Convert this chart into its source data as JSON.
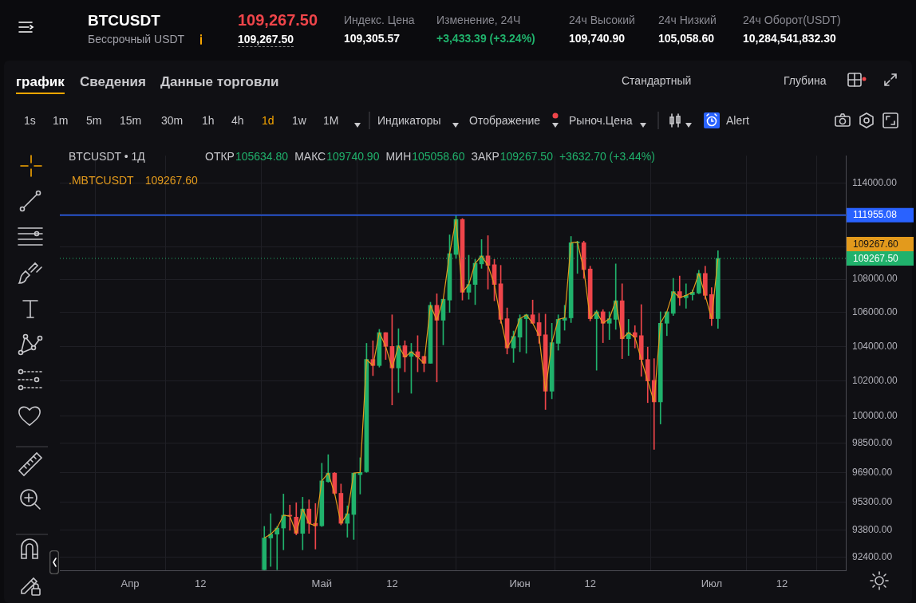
{
  "chart_data": {
    "type": "candlestick",
    "title": "BTCUSDT",
    "subtitle": "Бессрочный USDT",
    "x": [
      "--04-22",
      "--04-23",
      "--04-24",
      "--04-25",
      "--04-26",
      "--04-27",
      "--04-28",
      "--04-29",
      "--04-30",
      "--05-01",
      "--05-02",
      "--05-03",
      "--05-04",
      "--05-05",
      "--05-06",
      "--05-07",
      "--05-08",
      "--05-09",
      "--05-10",
      "--05-11",
      "--05-12",
      "--05-13",
      "--05-14",
      "--05-15",
      "--05-16",
      "--05-17",
      "--05-18",
      "--05-19",
      "--05-20",
      "--05-21",
      "--05-22",
      "--05-23",
      "--05-24",
      "--05-25",
      "--05-26",
      "--05-27",
      "--05-28",
      "--05-29",
      "--05-30",
      "--05-31",
      "--06-01",
      "--06-02",
      "--06-03",
      "--06-04",
      "--06-05",
      "--06-06",
      "--06-07",
      "--06-08",
      "--06-09",
      "--06-10",
      "--06-11",
      "--06-12",
      "--06-13",
      "--06-14",
      "--06-15",
      "--06-16",
      "--06-17",
      "--06-18",
      "--06-19",
      "--06-20",
      "--06-21",
      "--06-22",
      "--06-23",
      "--06-24",
      "--06-25",
      "--06-26",
      "--06-27",
      "--06-28",
      "--06-29",
      "--06-30",
      "--07-01",
      "--07-02"
    ],
    "ohlc": [
      [
        91750,
        94010,
        91750,
        93400
      ],
      [
        93400,
        94680,
        91920,
        93600
      ],
      [
        93600,
        94010,
        91750,
        93920
      ],
      [
        93920,
        95730,
        92780,
        94600
      ],
      [
        94600,
        95140,
        93800,
        94550
      ],
      [
        94500,
        95260,
        93560,
        93640
      ],
      [
        93640,
        95560,
        92780,
        94930
      ],
      [
        94930,
        95420,
        93640,
        94170
      ],
      [
        94170,
        95220,
        92820,
        94040
      ],
      [
        94040,
        97400,
        94000,
        96440
      ],
      [
        96400,
        97870,
        96360,
        96860
      ],
      [
        96860,
        96900,
        95700,
        95770
      ],
      [
        95770,
        96270,
        94090,
        94170
      ],
      [
        94170,
        95100,
        93440,
        94680
      ],
      [
        94640,
        96860,
        93320,
        96860
      ],
      [
        96780,
        97700,
        95730,
        96900
      ],
      [
        96940,
        104180,
        96900,
        103240
      ],
      [
        103240,
        104330,
        102310,
        102890
      ],
      [
        102890,
        105000,
        102800,
        104810
      ],
      [
        104810,
        104810,
        103240,
        104000
      ],
      [
        104000,
        105860,
        100640,
        102750
      ],
      [
        102750,
        105040,
        101340,
        104040
      ],
      [
        104040,
        104330,
        102530,
        103380
      ],
      [
        103420,
        104180,
        101300,
        103690
      ],
      [
        103690,
        104630,
        102530,
        103380
      ],
      [
        103420,
        103420,
        102530,
        103020
      ],
      [
        103020,
        106610,
        103020,
        106430
      ],
      [
        106430,
        107120,
        101950,
        105540
      ],
      [
        105540,
        106790,
        104090,
        106790
      ],
      [
        106740,
        110720,
        106000,
        109560
      ],
      [
        109510,
        111950,
        109270,
        111680
      ],
      [
        111680,
        111740,
        106740,
        107210
      ],
      [
        107210,
        109460,
        106790,
        107680
      ],
      [
        107680,
        109200,
        106470,
        108970
      ],
      [
        108930,
        110430,
        108660,
        109420
      ],
      [
        109420,
        110670,
        107400,
        108840
      ],
      [
        108880,
        109200,
        106700,
        107680
      ],
      [
        107720,
        108840,
        105360,
        105590
      ],
      [
        105630,
        106270,
        103560,
        103910
      ],
      [
        103910,
        104900,
        103070,
        104590
      ],
      [
        104540,
        105860,
        103690,
        105630
      ],
      [
        105630,
        105900,
        103600,
        105860
      ],
      [
        105860,
        106740,
        105360,
        105360
      ],
      [
        105400,
        105950,
        104180,
        104630
      ],
      [
        104680,
        105900,
        100380,
        101420
      ],
      [
        101420,
        105360,
        100990,
        104220
      ],
      [
        104180,
        105860,
        103780,
        105590
      ],
      [
        105540,
        106430,
        104950,
        105680
      ],
      [
        105680,
        110620,
        105400,
        110230
      ],
      [
        110230,
        110330,
        108350,
        110280
      ],
      [
        110230,
        110330,
        108050,
        108580
      ],
      [
        108620,
        108790,
        105500,
        105630
      ],
      [
        105630,
        106130,
        102620,
        106040
      ],
      [
        106040,
        106170,
        104220,
        105360
      ],
      [
        105360,
        106040,
        104400,
        105630
      ],
      [
        105590,
        108930,
        105000,
        106700
      ],
      [
        106700,
        107720,
        103290,
        104450
      ],
      [
        104450,
        105590,
        103470,
        104810
      ],
      [
        104810,
        105220,
        103910,
        104540
      ],
      [
        104630,
        106470,
        102270,
        103240
      ],
      [
        103240,
        103960,
        100770,
        102000
      ],
      [
        102040,
        103290,
        98160,
        100810
      ],
      [
        100810,
        106040,
        99570,
        105360
      ],
      [
        105360,
        106040,
        104630,
        106040
      ],
      [
        105950,
        108050,
        105820,
        107250
      ],
      [
        107250,
        108190,
        106420,
        106880
      ],
      [
        106880,
        107720,
        106250,
        107020
      ],
      [
        107060,
        107350,
        106740,
        107210
      ],
      [
        107160,
        108540,
        107120,
        108350
      ],
      [
        108350,
        108790,
        106790,
        107020
      ],
      [
        107070,
        107490,
        105220,
        105630
      ],
      [
        105634.8,
        109740.9,
        105058.6,
        109267.5
      ]
    ],
    "colors": [
      "#20b26c",
      "#20b26c",
      "#20b26c",
      "#20b26c",
      "#ef454a",
      "#ef454a",
      "#20b26c",
      "#ef454a",
      "#ef454a",
      "#20b26c",
      "#20b26c",
      "#ef454a",
      "#ef454a",
      "#20b26c",
      "#20b26c",
      "#20b26c",
      "#20b26c",
      "#ef454a",
      "#20b26c",
      "#ef454a",
      "#ef454a",
      "#20b26c",
      "#ef454a",
      "#20b26c",
      "#ef454a",
      "#ef454a",
      "#20b26c",
      "#ef454a",
      "#20b26c",
      "#20b26c",
      "#20b26c",
      "#ef454a",
      "#20b26c",
      "#20b26c",
      "#20b26c",
      "#ef454a",
      "#ef454a",
      "#ef454a",
      "#ef454a",
      "#20b26c",
      "#20b26c",
      "#20b26c",
      "#ef454a",
      "#ef454a",
      "#ef454a",
      "#20b26c",
      "#20b26c",
      "#20b26c",
      "#20b26c",
      "#20b26c",
      "#ef454a",
      "#ef454a",
      "#20b26c",
      "#ef454a",
      "#20b26c",
      "#20b26c",
      "#ef454a",
      "#20b26c",
      "#ef454a",
      "#ef454a",
      "#ef454a",
      "#ef454a",
      "#20b26c",
      "#20b26c",
      "#20b26c",
      "#ef454a",
      "#20b26c",
      "#20b26c",
      "#20b26c",
      "#ef454a",
      "#ef454a",
      "#20b26c"
    ],
    "series": [
      {
        "name": ".MBTCUSDT",
        "type": "line",
        "color": "#e39a1c",
        "values": [
          93400,
          93600,
          93920,
          94600,
          94550,
          93640,
          94930,
          94170,
          94040,
          96440,
          96860,
          95770,
          94170,
          94680,
          96860,
          96900,
          103240,
          102890,
          104810,
          104000,
          102750,
          104040,
          103380,
          103690,
          103380,
          103020,
          106430,
          105540,
          106790,
          109560,
          111680,
          107210,
          107680,
          108970,
          109420,
          108840,
          107680,
          105590,
          103910,
          104590,
          105630,
          105860,
          105360,
          104630,
          101420,
          104220,
          105590,
          105680,
          110230,
          110280,
          108580,
          105630,
          106040,
          105360,
          105630,
          106700,
          104450,
          104810,
          104540,
          103240,
          102000,
          100810,
          105360,
          106040,
          107250,
          106880,
          107020,
          107210,
          108350,
          107020,
          105630,
          109267.6
        ]
      }
    ],
    "xlim": [
      "--03-21",
      "--07-22"
    ],
    "xticks": [
      {
        "value": "--04-01",
        "label": "Апр"
      },
      {
        "value": "--04-12",
        "label": "12"
      },
      {
        "value": "--05-01",
        "label": "Май"
      },
      {
        "value": "--05-12",
        "label": "12"
      },
      {
        "value": "--06-01",
        "label": "Июн"
      },
      {
        "value": "--06-12",
        "label": "12"
      },
      {
        "value": "--07-01",
        "label": "Июл"
      },
      {
        "value": "--07-12",
        "label": "12"
      }
    ],
    "ylim": [
      91720,
      115750
    ],
    "yticks": [
      {
        "value": 114000,
        "label": "114000.00"
      },
      {
        "value": 112000,
        "label": null
      },
      {
        "value": 110000,
        "label": null
      },
      {
        "value": 108000,
        "label": "108000.00"
      },
      {
        "value": 106000,
        "label": "106000.00"
      },
      {
        "value": 104000,
        "label": "104000.00"
      },
      {
        "value": 102000,
        "label": "102000.00"
      },
      {
        "value": 100000,
        "label": "100000.00"
      },
      {
        "value": 98500,
        "label": "98500.00"
      },
      {
        "value": 96900,
        "label": "96900.00"
      },
      {
        "value": 95300,
        "label": "95300.00"
      },
      {
        "value": 93800,
        "label": "93800.00"
      },
      {
        "value": 92400,
        "label": "92400.00"
      }
    ],
    "log": true,
    "grid": true,
    "legend": "top left",
    "marker": "none",
    "ref_lines": [
      {
        "axis": "y",
        "value": 111955.08,
        "label": "111955.08",
        "color": "#2962ff",
        "line_style": "solid"
      },
      {
        "axis": "y",
        "value": 109267.5,
        "label": "109267.50",
        "color": "#20b26c",
        "line_style": "dotted"
      }
    ],
    "annotations": [
      "109,267.50",
      "109,267.50",
      "Индекс. Цена",
      "109,305.57",
      "Изменение, 24Ч",
      "+3,433.39 (+3.24%)",
      "24ч Высокий",
      "109,740.90",
      "24ч Низкий",
      "105,058.60",
      "24ч Оборот(USDT)",
      "10,284,541,832.30",
      "график",
      "Сведения",
      "Данные торговли",
      "Стандартный",
      "Глубина",
      "1s",
      "1m",
      "5m",
      "15m",
      "30m",
      "1h",
      "4h",
      "1d",
      "1w",
      "1M",
      "Индикаторы",
      "Отображение",
      "Рыноч.Цена",
      "Alert",
      "BTCUSDT • 1Д",
      "ОТКР",
      "105634.80",
      "МАКС",
      "109740.90",
      "МИН",
      "105058.60",
      "ЗАКР",
      "109267.50",
      "+3632.70 (+3.44%)",
      "109267.60"
    ]
  }
}
